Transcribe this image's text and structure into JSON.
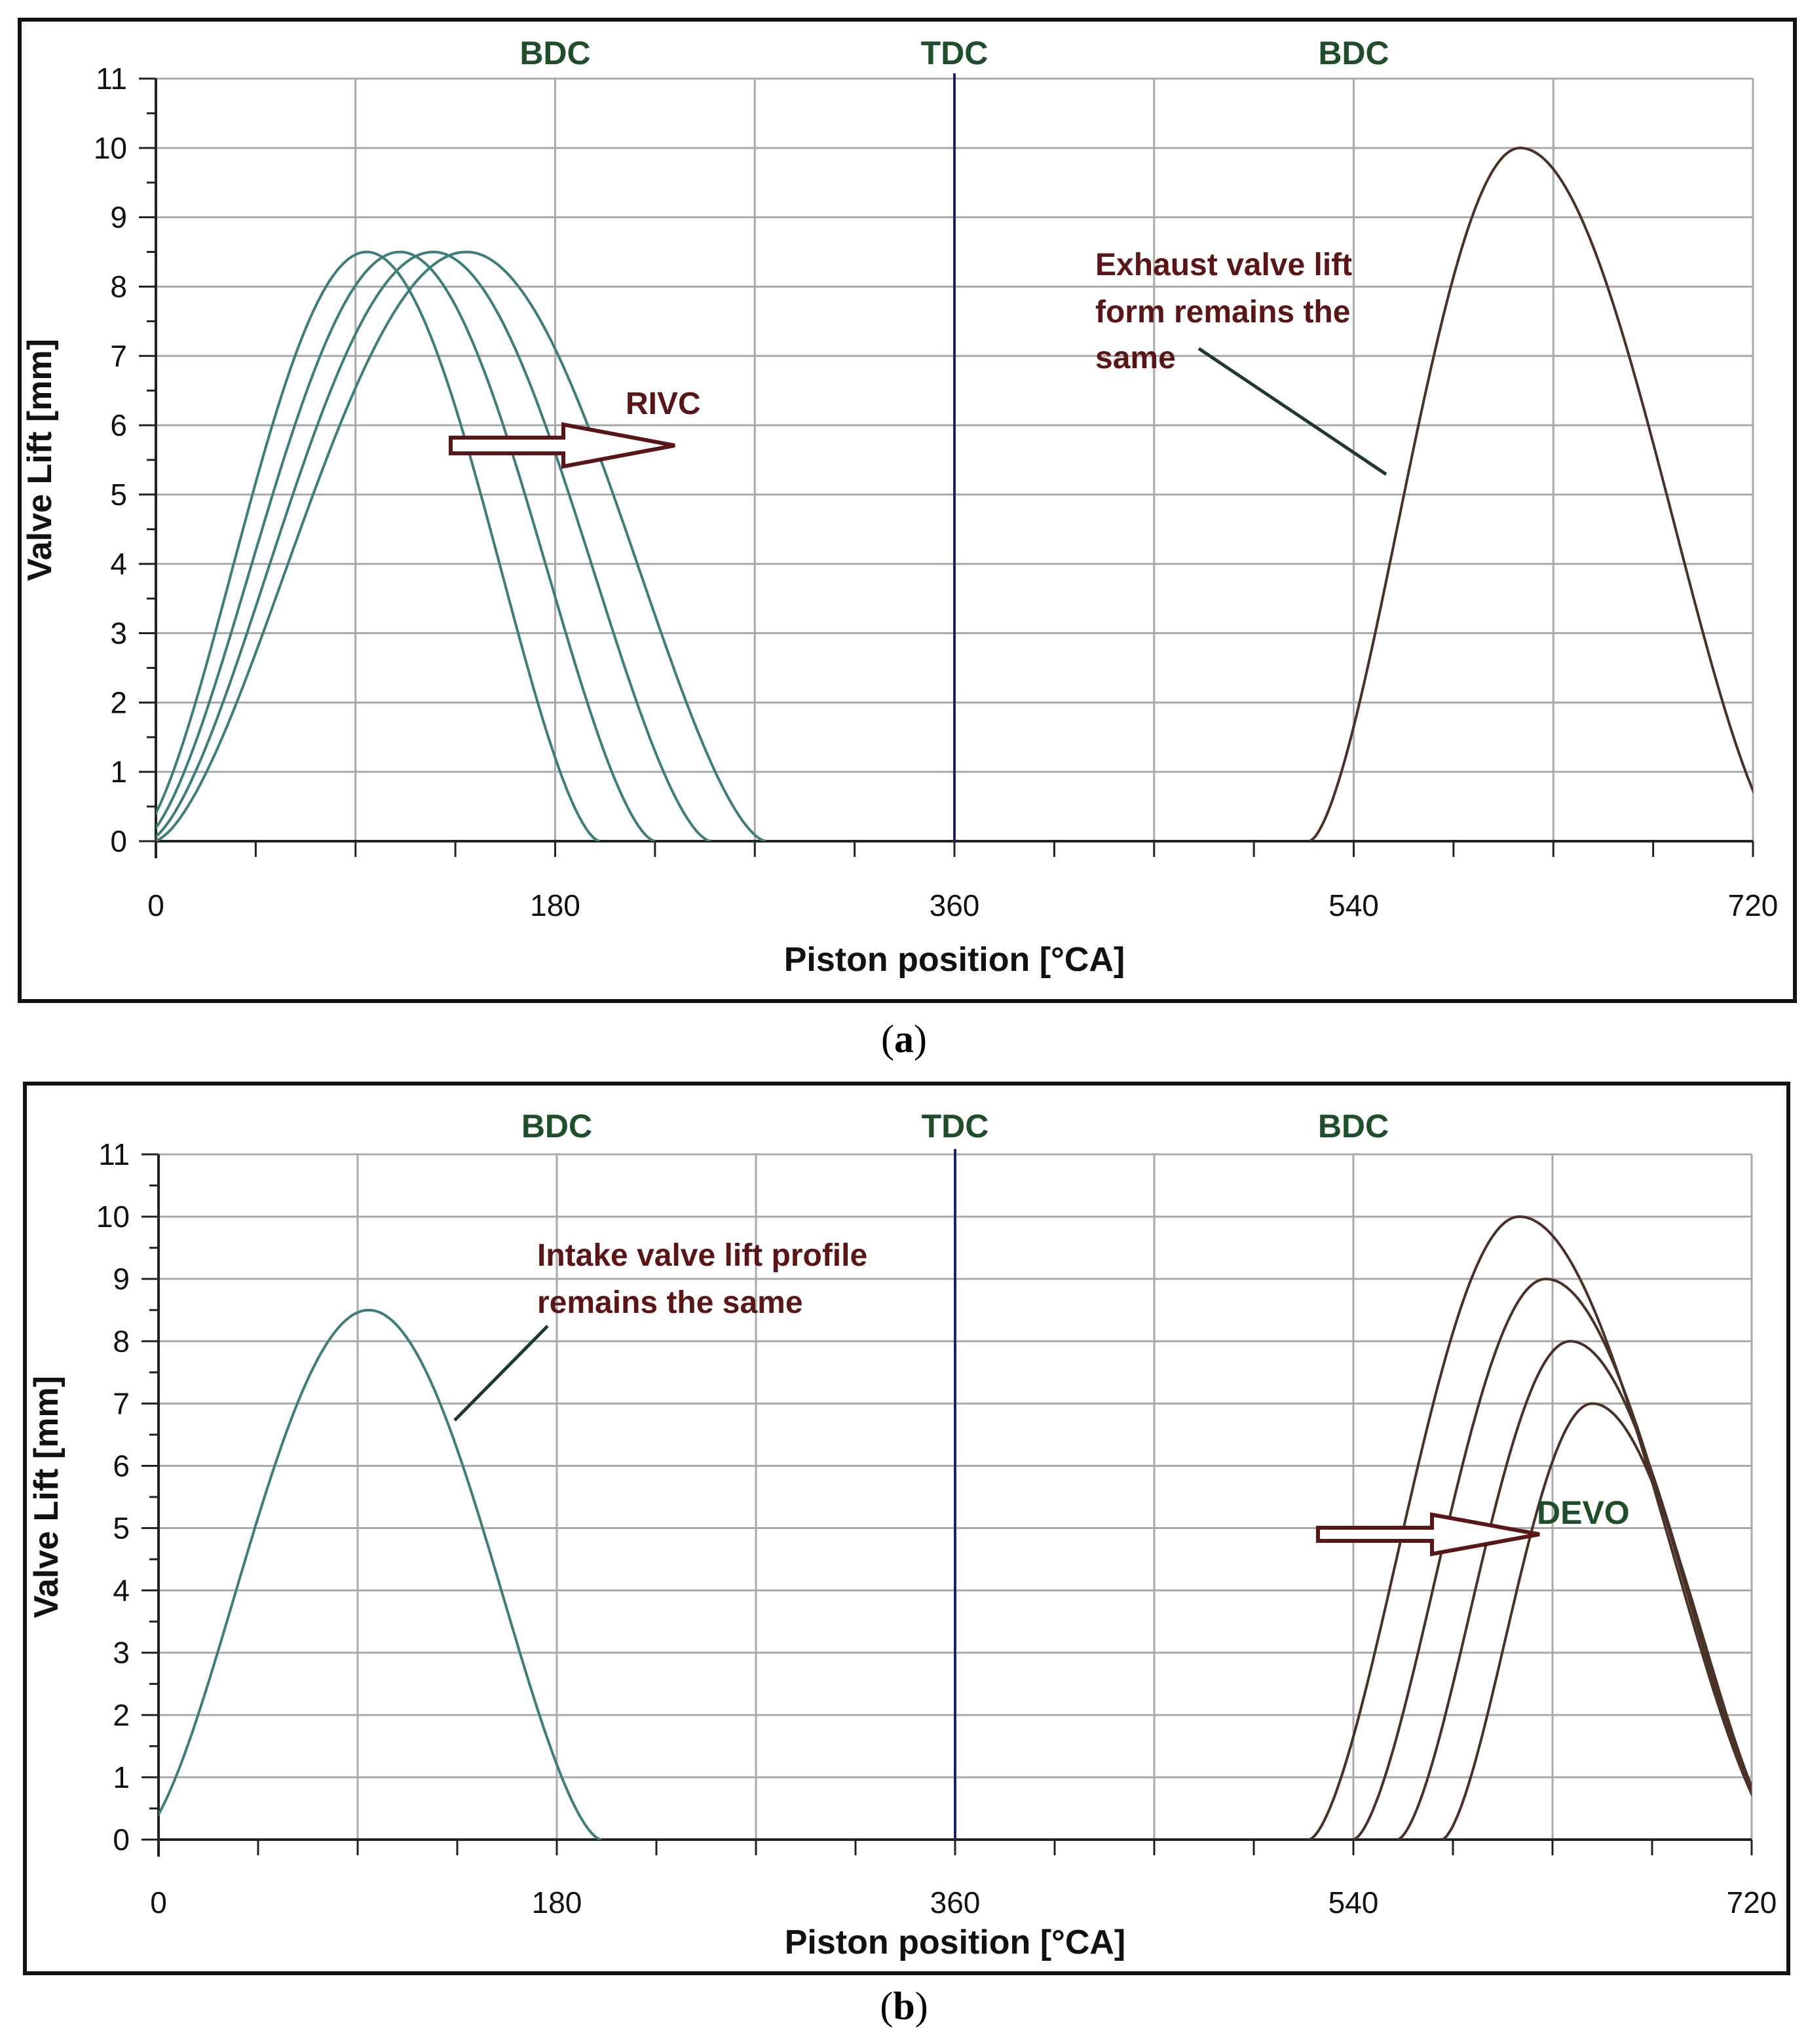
{
  "colors": {
    "frame": "#111111",
    "grid": "#a9a9a9",
    "intake": "#3f7d7a",
    "exhaust": "#4a3128",
    "tdc_line": "#1f2260",
    "markers": "#1f4e2a",
    "annotation": "#5a1616",
    "arrow_fill": "#ffffff",
    "arrow_stroke": "#5a1616"
  },
  "chart_data": [
    {
      "id": "a",
      "type": "line",
      "caption_label": "a",
      "xlabel": "Piston position [°CA]",
      "ylabel": "Valve Lift [mm]",
      "xlim": [
        0,
        720
      ],
      "ylim": [
        0,
        11
      ],
      "x_ticks": [
        0,
        180,
        360,
        540,
        720
      ],
      "x_tick_labels": [
        "0",
        "180",
        "360",
        "540",
        "720"
      ],
      "y_ticks": [
        0,
        1,
        2,
        3,
        4,
        5,
        6,
        7,
        8,
        9,
        10,
        11
      ],
      "top_markers": [
        {
          "label": "BDC",
          "x": 180
        },
        {
          "label": "TDC",
          "x": 360
        },
        {
          "label": "BDC",
          "x": 540
        }
      ],
      "series": [
        {
          "name": "Intake valve lift 1",
          "kind": "intake",
          "open": -10,
          "peak_x": 95,
          "close": 200,
          "peak": 8.5
        },
        {
          "name": "Intake valve lift 2",
          "kind": "intake",
          "open": -7,
          "peak_x": 110,
          "close": 225,
          "peak": 8.5
        },
        {
          "name": "Intake valve lift 3",
          "kind": "intake",
          "open": -4,
          "peak_x": 125,
          "close": 250,
          "peak": 8.5
        },
        {
          "name": "Intake valve lift 4",
          "kind": "intake",
          "open": -1,
          "peak_x": 140,
          "close": 275,
          "peak": 8.5
        },
        {
          "name": "Exhaust valve lift",
          "kind": "exhaust",
          "open": 520,
          "peak_x": 615,
          "close": 735,
          "peak": 10
        }
      ],
      "annotations": [
        {
          "name": "rivc",
          "text": "RIVC"
        },
        {
          "name": "exhaust-note",
          "lines": [
            "Exhaust valve lift",
            "form remains the",
            "same"
          ]
        }
      ]
    },
    {
      "id": "b",
      "type": "line",
      "caption_label": "b",
      "xlabel": "Piston position [°CA]",
      "ylabel": "Valve Lift [mm]",
      "xlim": [
        0,
        720
      ],
      "ylim": [
        0,
        11
      ],
      "x_ticks": [
        0,
        180,
        360,
        540,
        720
      ],
      "x_tick_labels": [
        "0",
        "180",
        "360",
        "540",
        "720"
      ],
      "y_ticks": [
        0,
        1,
        2,
        3,
        4,
        5,
        6,
        7,
        8,
        9,
        10,
        11
      ],
      "top_markers": [
        {
          "label": "BDC",
          "x": 180
        },
        {
          "label": "TDC",
          "x": 360
        },
        {
          "label": "BDC",
          "x": 540
        }
      ],
      "series": [
        {
          "name": "Intake valve lift",
          "kind": "intake",
          "open": -10,
          "peak_x": 95,
          "close": 200,
          "peak": 8.5
        },
        {
          "name": "Exhaust valve lift 1",
          "kind": "exhaust",
          "open": 520,
          "peak_x": 615,
          "close": 735,
          "peak": 10
        },
        {
          "name": "Exhaust valve lift 2",
          "kind": "exhaust",
          "open": 540,
          "peak_x": 627,
          "close": 735,
          "peak": 9
        },
        {
          "name": "Exhaust valve lift 3",
          "kind": "exhaust",
          "open": 560,
          "peak_x": 638,
          "close": 735,
          "peak": 8
        },
        {
          "name": "Exhaust valve lift 4",
          "kind": "exhaust",
          "open": 580,
          "peak_x": 648,
          "close": 735,
          "peak": 7
        }
      ],
      "annotations": [
        {
          "name": "devo",
          "text": "DEVO"
        },
        {
          "name": "intake-note",
          "lines": [
            "Intake valve lift profile",
            "remains the same"
          ]
        }
      ]
    }
  ]
}
